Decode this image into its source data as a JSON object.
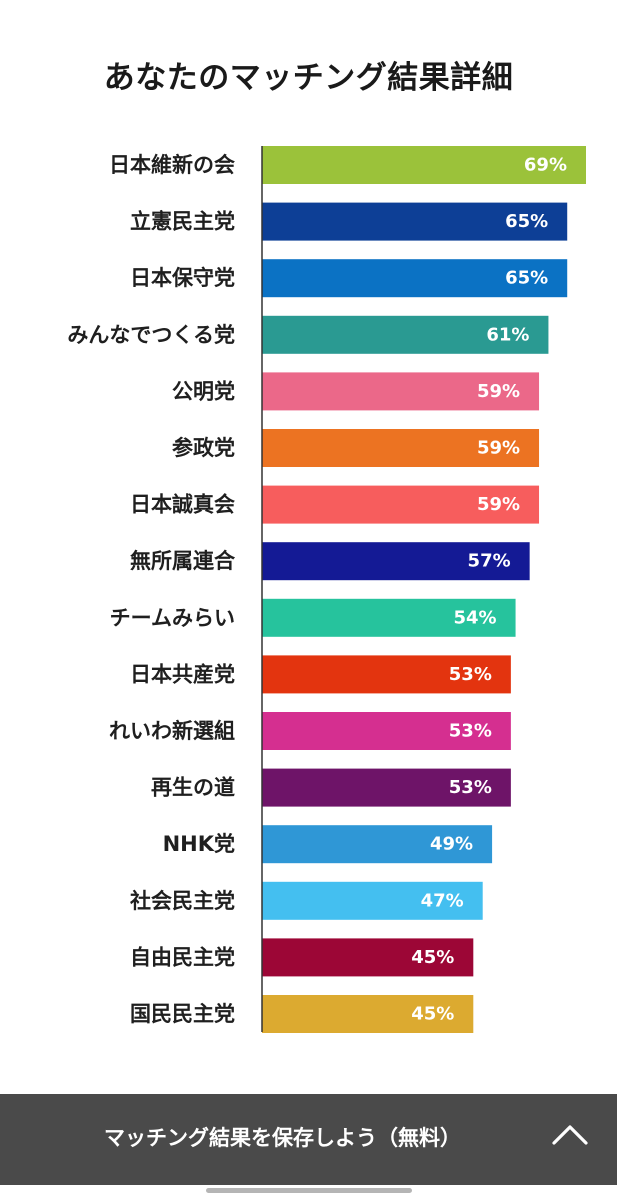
{
  "chart_data": {
    "type": "bar",
    "orientation": "horizontal",
    "title": "あなたのマッチング結果詳細",
    "unit": "%",
    "xlim": [
      0,
      69
    ],
    "grid": false,
    "categories": [
      "日本維新の会",
      "立憲民主党",
      "日本保守党",
      "みんなでつくる党",
      "公明党",
      "参政党",
      "日本誠真会",
      "無所属連合",
      "チームみらい",
      "日本共産党",
      "れいわ新選組",
      "再生の道",
      "NHK党",
      "社会民主党",
      "自由民主党",
      "国民民主党"
    ],
    "values": [
      69,
      65,
      65,
      61,
      59,
      59,
      59,
      57,
      54,
      53,
      53,
      53,
      49,
      47,
      45,
      45
    ],
    "value_labels": [
      "69%",
      "65%",
      "65%",
      "61%",
      "59%",
      "59%",
      "59%",
      "57%",
      "54%",
      "53%",
      "53%",
      "53%",
      "49%",
      "47%",
      "45%",
      "45%"
    ],
    "colors": [
      "#9bc23a",
      "#0d3f96",
      "#0b72c4",
      "#2a9a92",
      "#eb6889",
      "#ec7322",
      "#f75d5d",
      "#141a95",
      "#26c39d",
      "#e3340f",
      "#d52f90",
      "#6e1468",
      "#2f97d6",
      "#44bff0",
      "#9c0636",
      "#dcaa30"
    ]
  },
  "footer": {
    "label": "マッチング結果を保存しよう（無料）",
    "chevron_icon": "chevron-up-icon"
  }
}
